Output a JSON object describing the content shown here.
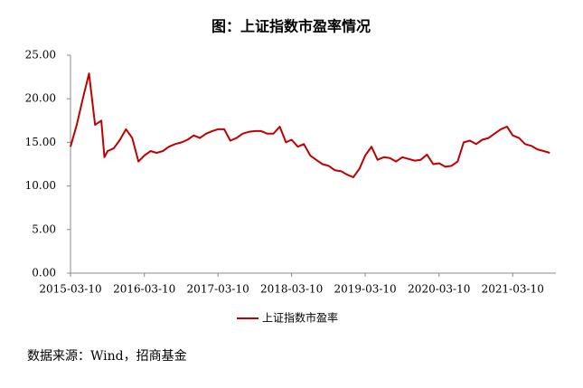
{
  "chart_data": {
    "type": "line",
    "title": "图：上证指数市盈率情况",
    "source": "数据来源：Wind，招商基金",
    "x": [
      "2015-03-10",
      "2015-04-10",
      "2015-05-10",
      "2015-06-10",
      "2015-07-10",
      "2015-08-10",
      "2015-08-25",
      "2015-09-10",
      "2015-10-10",
      "2015-11-10",
      "2015-12-10",
      "2016-01-10",
      "2016-02-10",
      "2016-03-10",
      "2016-04-10",
      "2016-05-10",
      "2016-06-10",
      "2016-07-10",
      "2016-08-10",
      "2016-09-10",
      "2016-10-10",
      "2016-11-10",
      "2016-12-10",
      "2017-01-10",
      "2017-02-10",
      "2017-03-10",
      "2017-04-10",
      "2017-05-10",
      "2017-06-10",
      "2017-07-10",
      "2017-08-10",
      "2017-09-10",
      "2017-10-10",
      "2017-11-10",
      "2017-12-10",
      "2018-01-10",
      "2018-02-10",
      "2018-03-10",
      "2018-04-10",
      "2018-05-10",
      "2018-06-10",
      "2018-07-10",
      "2018-08-10",
      "2018-09-10",
      "2018-10-10",
      "2018-11-10",
      "2018-12-10",
      "2019-01-10",
      "2019-02-10",
      "2019-03-10",
      "2019-04-10",
      "2019-05-10",
      "2019-06-10",
      "2019-07-10",
      "2019-08-10",
      "2019-09-10",
      "2019-10-10",
      "2019-11-10",
      "2019-12-10",
      "2020-01-10",
      "2020-02-10",
      "2020-03-10",
      "2020-04-10",
      "2020-05-10",
      "2020-06-10",
      "2020-07-10",
      "2020-08-10",
      "2020-09-10",
      "2020-10-10",
      "2020-11-10",
      "2020-12-10",
      "2021-01-10",
      "2021-02-10",
      "2021-03-10",
      "2021-04-10",
      "2021-05-10",
      "2021-06-10",
      "2021-07-10",
      "2021-08-10",
      "2021-09-10"
    ],
    "series": [
      {
        "name": "上证指数市盈率",
        "color": "#c00000",
        "values": [
          14.5,
          17,
          20,
          22.9,
          17,
          17.5,
          13.3,
          14,
          14.3,
          15.3,
          16.5,
          15.5,
          12.8,
          13.5,
          14,
          13.8,
          14,
          14.5,
          14.8,
          15,
          15.3,
          15.8,
          15.5,
          16,
          16.3,
          16.5,
          16.5,
          15.2,
          15.5,
          16,
          16.2,
          16.3,
          16.3,
          16,
          16,
          16.8,
          15,
          15.3,
          14.5,
          14.8,
          13.5,
          13,
          12.5,
          12.3,
          11.8,
          11.7,
          11.3,
          11,
          12,
          13.5,
          14.5,
          13,
          13.3,
          13.2,
          12.8,
          13.3,
          13.1,
          12.9,
          13,
          13.6,
          12.5,
          12.6,
          12.2,
          12.3,
          12.8,
          15,
          15.2,
          14.8,
          15.3,
          15.5,
          16,
          16.5,
          16.8,
          15.8,
          15.5,
          14.8,
          14.6,
          14.2,
          14,
          13.8
        ]
      }
    ],
    "xlim": [
      "2015-03-10",
      "2021-10-10"
    ],
    "xticks": [
      "2015-03-10",
      "2016-03-10",
      "2017-03-10",
      "2018-03-10",
      "2019-03-10",
      "2020-03-10",
      "2021-03-10"
    ],
    "ylim": [
      0,
      25
    ],
    "yticks": [
      {
        "value": 0,
        "label": "0.00"
      },
      {
        "value": 5,
        "label": "5.00"
      },
      {
        "value": 10,
        "label": "10.00"
      },
      {
        "value": 15,
        "label": "15.00"
      },
      {
        "value": 20,
        "label": "20.00"
      },
      {
        "value": 25,
        "label": "25.00"
      }
    ],
    "grid": false,
    "legend": "bottom"
  }
}
